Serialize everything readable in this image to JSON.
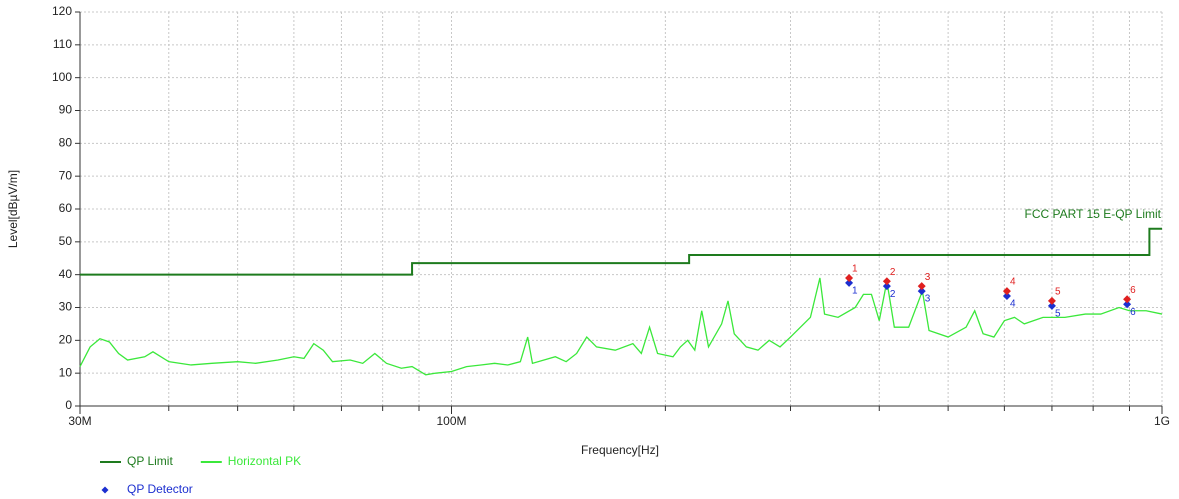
{
  "chart_data": {
    "type": "line",
    "xlabel": "Frequency[Hz]",
    "ylabel": "Level[dBµV/m]",
    "xscale": "log",
    "xlim": [
      30000000,
      1000000000
    ],
    "xticks": [
      {
        "value": 30000000,
        "label": "30M"
      },
      {
        "value": 100000000,
        "label": "100M"
      },
      {
        "value": 1000000000,
        "label": "1G"
      }
    ],
    "x_minor_grid": [
      40000000,
      50000000,
      60000000,
      70000000,
      80000000,
      90000000,
      200000000,
      300000000,
      400000000,
      500000000,
      600000000,
      700000000,
      800000000,
      900000000
    ],
    "ylim": [
      0,
      120
    ],
    "yticks": [
      0,
      10,
      20,
      30,
      40,
      50,
      60,
      70,
      80,
      90,
      100,
      110,
      120
    ],
    "grid": true,
    "annotation": "FCC PART 15 E-QP Limit",
    "series": [
      {
        "name": "QP Limit",
        "color": "#1e7b1e",
        "x": [
          30000000,
          88000000,
          88000000,
          216000000,
          216000000,
          960000000,
          960000000,
          1000000000
        ],
        "values": [
          40,
          40,
          43.5,
          43.5,
          46,
          46,
          54,
          54
        ]
      },
      {
        "name": "Horizontal PK",
        "color": "#3be83b",
        "x": [
          30000000,
          31000000,
          32000000,
          33000000,
          34000000,
          35000000,
          37000000,
          38000000,
          40000000,
          43000000,
          46000000,
          50000000,
          53000000,
          57000000,
          60000000,
          62000000,
          64000000,
          66000000,
          68000000,
          72000000,
          75000000,
          78000000,
          81000000,
          85000000,
          88000000,
          92000000,
          95000000,
          100000000,
          105000000,
          110000000,
          115000000,
          120000000,
          125000000,
          128000000,
          130000000,
          140000000,
          145000000,
          150000000,
          155000000,
          160000000,
          170000000,
          180000000,
          185000000,
          190000000,
          195000000,
          205000000,
          210000000,
          215000000,
          220000000,
          225000000,
          230000000,
          240000000,
          245000000,
          250000000,
          260000000,
          270000000,
          280000000,
          290000000,
          300000000,
          320000000,
          330000000,
          335000000,
          350000000,
          370000000,
          380000000,
          390000000,
          400000000,
          410000000,
          420000000,
          440000000,
          460000000,
          470000000,
          500000000,
          530000000,
          545000000,
          560000000,
          580000000,
          600000000,
          620000000,
          640000000,
          680000000,
          700000000,
          730000000,
          780000000,
          820000000,
          870000000,
          900000000,
          950000000,
          1000000000
        ],
        "values": [
          12,
          18,
          20.5,
          19.5,
          16,
          14,
          15,
          16.5,
          13.5,
          12.5,
          13,
          13.5,
          13,
          14,
          15,
          14.5,
          19,
          17,
          13.5,
          14,
          13,
          16,
          13,
          11.5,
          12,
          9.5,
          10,
          10.5,
          12,
          12.5,
          13,
          12.5,
          13.5,
          21,
          13,
          15,
          13.5,
          16,
          21,
          18,
          17,
          19,
          16,
          24,
          16,
          15,
          18,
          20,
          17,
          29,
          18,
          25,
          32,
          22,
          18,
          17,
          20,
          18,
          21,
          27,
          39,
          28,
          27,
          30,
          34,
          34,
          26,
          38,
          24,
          24,
          35,
          23,
          21,
          24,
          29,
          22,
          21,
          26,
          27,
          25,
          27,
          27,
          27,
          28,
          28,
          30,
          29,
          29,
          28
        ]
      },
      {
        "name": "QP Detector",
        "color": "#1c2fd0",
        "marker": "diamond",
        "x": [
          362700000,
          410000000,
          459000000,
          605000000,
          700000000,
          893000000
        ],
        "values": [
          37.5,
          36.5,
          35,
          33.5,
          30.5,
          31
        ],
        "labels": [
          "1",
          "2",
          "3",
          "4",
          "5",
          "6"
        ]
      }
    ],
    "peaks": {
      "color": "#e02020",
      "marker": "diamond",
      "x": [
        362700000,
        410000000,
        459000000,
        605000000,
        700000000,
        893000000
      ],
      "values": [
        39,
        38,
        36.5,
        35,
        32,
        32.5
      ],
      "labels": [
        "1",
        "2",
        "3",
        "4",
        "5",
        "6"
      ]
    }
  }
}
